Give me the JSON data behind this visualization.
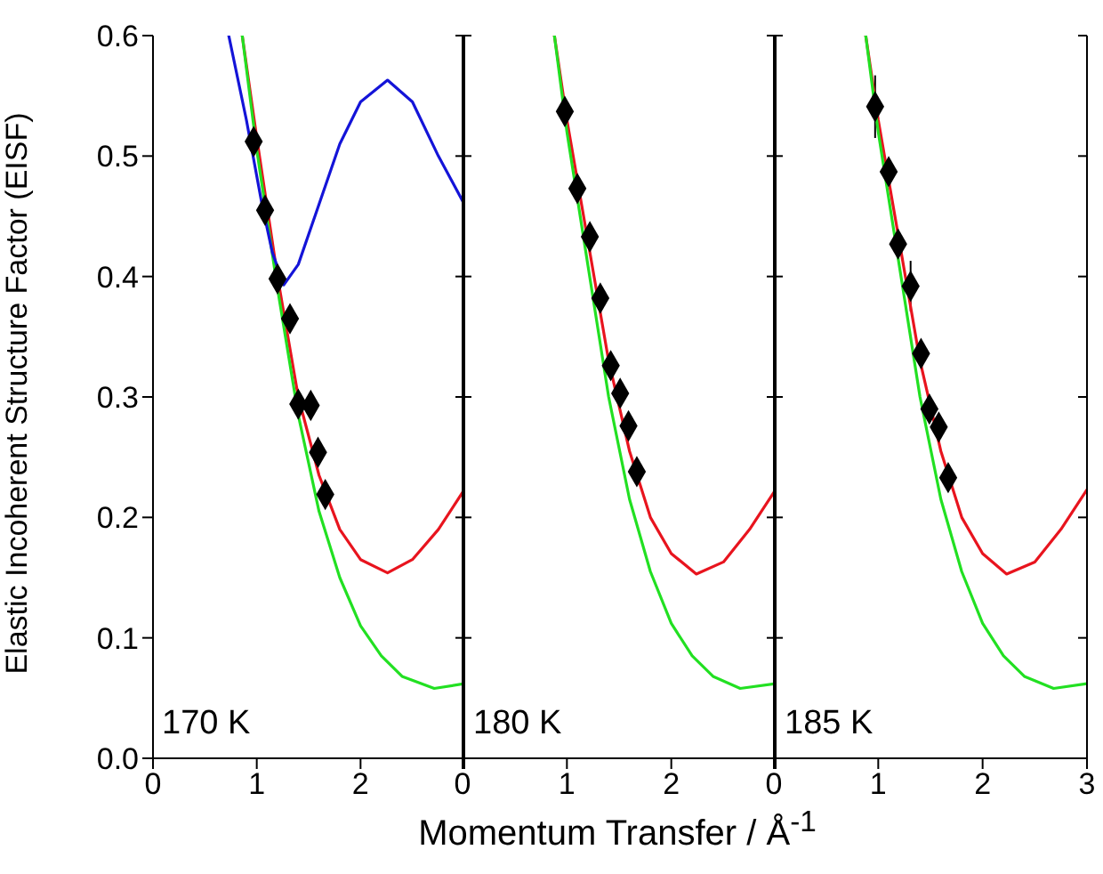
{
  "chart_data": [
    {
      "type": "line",
      "ylabel": "Elastic Incoherent Structure Factor (EISF)",
      "xlim": [
        0,
        3
      ],
      "xticks": [
        0,
        1,
        2,
        {
          "value": 3,
          "label": null
        }
      ],
      "ylim": [
        0,
        0.6
      ],
      "yticks": [
        {
          "value": 0,
          "label": "0.0"
        },
        0.1,
        0.2,
        0.3,
        0.4,
        0.5,
        0.6
      ],
      "annotations": [
        "170 K"
      ],
      "series": [
        {
          "color": "#e8141e",
          "marker": "none",
          "x": [
            0.86,
            1.0,
            1.2,
            1.4,
            1.6,
            1.8,
            2.0,
            2.26,
            2.5,
            2.75,
            3.0
          ],
          "values": [
            0.6,
            0.515,
            0.4,
            0.3,
            0.235,
            0.19,
            0.165,
            0.154,
            0.165,
            0.19,
            0.223
          ]
        },
        {
          "color": "#22e022",
          "marker": "none",
          "x": [
            0.86,
            1.0,
            1.2,
            1.4,
            1.6,
            1.8,
            2.0,
            2.2,
            2.4,
            2.71,
            3.0
          ],
          "values": [
            0.6,
            0.505,
            0.39,
            0.285,
            0.205,
            0.15,
            0.11,
            0.085,
            0.068,
            0.058,
            0.062
          ]
        },
        {
          "color": "#1414d8",
          "marker": "none",
          "x": [
            0.73,
            0.9,
            1.05,
            1.15,
            1.26,
            1.4,
            1.6,
            1.8,
            2.0,
            2.26,
            2.5,
            2.75,
            3.0
          ],
          "values": [
            0.6,
            0.53,
            0.46,
            0.42,
            0.393,
            0.41,
            0.46,
            0.51,
            0.545,
            0.563,
            0.545,
            0.5,
            0.46
          ]
        },
        {
          "type": "scatter",
          "color": "#000000",
          "marker": "diamond",
          "x": [
            0.97,
            1.08,
            1.2,
            1.32,
            1.4,
            1.52,
            1.59,
            1.66
          ],
          "values": [
            0.512,
            0.455,
            0.398,
            0.365,
            0.294,
            0.293,
            0.254,
            0.219
          ]
        }
      ]
    },
    {
      "type": "line",
      "xlabel": "Momentum Transfer / Å$^{-1}$",
      "xlim": [
        0,
        3
      ],
      "xticks": [
        0,
        1,
        2,
        {
          "value": 3,
          "label": null
        }
      ],
      "ylim": [
        0,
        0.6
      ],
      "yticks": [
        0,
        0.1,
        0.2,
        0.3,
        0.4,
        0.5,
        0.6
      ],
      "tick_labels": "x",
      "annotations": [
        "180 K"
      ],
      "series": [
        {
          "color": "#e8141e",
          "marker": "none",
          "x": [
            0.88,
            1.0,
            1.2,
            1.4,
            1.6,
            1.8,
            2.0,
            2.24,
            2.5,
            2.75,
            3.0
          ],
          "values": [
            0.6,
            0.53,
            0.43,
            0.33,
            0.255,
            0.2,
            0.17,
            0.153,
            0.163,
            0.19,
            0.223
          ]
        },
        {
          "color": "#22e022",
          "marker": "none",
          "x": [
            0.88,
            1.0,
            1.2,
            1.4,
            1.6,
            1.8,
            2.0,
            2.2,
            2.4,
            2.66,
            3.0
          ],
          "values": [
            0.6,
            0.52,
            0.41,
            0.3,
            0.215,
            0.155,
            0.112,
            0.085,
            0.068,
            0.058,
            0.062
          ]
        },
        {
          "type": "scatter",
          "color": "#000000",
          "marker": "diamond",
          "x": [
            0.98,
            1.1,
            1.22,
            1.32,
            1.42,
            1.51,
            1.59,
            1.67
          ],
          "values": [
            0.537,
            0.473,
            0.433,
            0.382,
            0.326,
            0.303,
            0.276,
            0.238
          ]
        }
      ]
    },
    {
      "type": "line",
      "xlim": [
        0,
        3
      ],
      "xticks": [
        0,
        1,
        2,
        3
      ],
      "ylim": [
        0,
        0.6
      ],
      "yticks": [
        0,
        0.1,
        0.2,
        0.3,
        0.4,
        0.5,
        0.6
      ],
      "tick_labels": "x",
      "annotations": [
        "185 K"
      ],
      "series": [
        {
          "color": "#e8141e",
          "marker": "none",
          "x": [
            0.88,
            1.0,
            1.2,
            1.4,
            1.6,
            1.8,
            2.0,
            2.23,
            2.5,
            2.75,
            3.0
          ],
          "values": [
            0.6,
            0.53,
            0.43,
            0.33,
            0.255,
            0.2,
            0.17,
            0.153,
            0.163,
            0.19,
            0.223
          ]
        },
        {
          "color": "#22e022",
          "marker": "none",
          "x": [
            0.88,
            1.0,
            1.2,
            1.4,
            1.6,
            1.8,
            2.0,
            2.2,
            2.4,
            2.68,
            3.0
          ],
          "values": [
            0.6,
            0.52,
            0.41,
            0.3,
            0.215,
            0.155,
            0.112,
            0.085,
            0.068,
            0.058,
            0.062
          ]
        },
        {
          "type": "scatter",
          "color": "#000000",
          "marker": "diamond",
          "x": [
            0.97,
            1.1,
            1.19,
            1.31,
            1.41,
            1.49,
            1.58,
            1.67
          ],
          "values": [
            0.541,
            0.487,
            0.427,
            0.392,
            0.336,
            0.29,
            0.275,
            0.233
          ],
          "errors": [
            0.026,
            null,
            null,
            0.021,
            null,
            null,
            null,
            null
          ]
        }
      ]
    }
  ]
}
